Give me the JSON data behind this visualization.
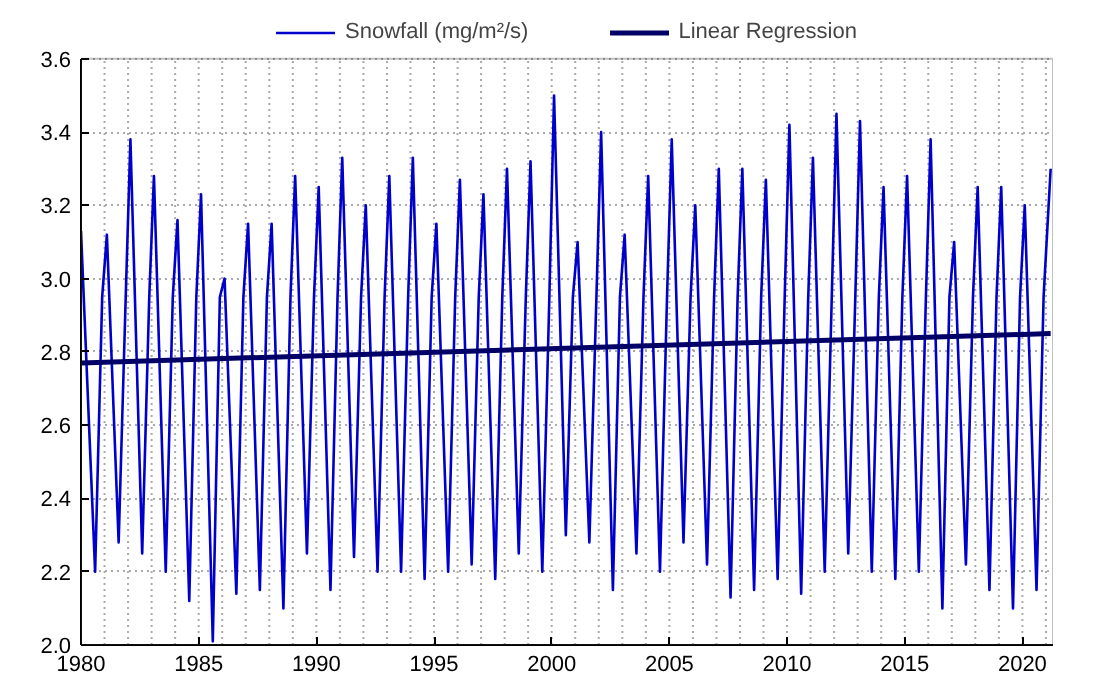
{
  "chart_data": {
    "type": "line",
    "xlim": [
      1980,
      2021.3
    ],
    "ylim": [
      2.0,
      3.6
    ],
    "xticks": [
      1980,
      1985,
      1990,
      1995,
      2000,
      2005,
      2010,
      2015,
      2020
    ],
    "yticks": [
      {
        "value": 2.0,
        "label": "2.0"
      },
      2.2,
      2.4,
      2.6,
      2.8,
      {
        "value": 3.0,
        "label": "3.0"
      },
      3.2,
      3.4,
      3.6
    ],
    "grid": true,
    "legend": "top",
    "marker": "none",
    "line_style": "solid",
    "series": [
      {
        "name": "Snowfall (mg/m²/s)",
        "color": "#0000cc",
        "x": [
          1980.0,
          1980.6,
          1980.9,
          1981.1,
          1981.6,
          1981.9,
          1982.1,
          1982.6,
          1982.9,
          1983.1,
          1983.6,
          1983.9,
          1984.1,
          1984.6,
          1984.9,
          1985.1,
          1985.6,
          1985.9,
          1986.1,
          1986.6,
          1986.9,
          1987.1,
          1987.6,
          1987.9,
          1988.1,
          1988.6,
          1988.9,
          1989.1,
          1989.6,
          1989.9,
          1990.1,
          1990.6,
          1990.9,
          1991.1,
          1991.6,
          1991.9,
          1992.1,
          1992.6,
          1992.9,
          1993.1,
          1993.6,
          1993.9,
          1994.1,
          1994.6,
          1994.9,
          1995.1,
          1995.6,
          1995.9,
          1996.1,
          1996.6,
          1996.9,
          1997.1,
          1997.6,
          1997.9,
          1998.1,
          1998.6,
          1998.9,
          1999.1,
          1999.6,
          1999.9,
          2000.1,
          2000.6,
          2000.9,
          2001.1,
          2001.6,
          2001.9,
          2002.1,
          2002.6,
          2002.9,
          2003.1,
          2003.6,
          2003.9,
          2004.1,
          2004.6,
          2004.9,
          2005.1,
          2005.6,
          2005.9,
          2006.1,
          2006.6,
          2006.9,
          2007.1,
          2007.6,
          2007.9,
          2008.1,
          2008.6,
          2008.9,
          2009.1,
          2009.6,
          2009.9,
          2010.1,
          2010.6,
          2010.9,
          2011.1,
          2011.6,
          2011.9,
          2012.1,
          2012.6,
          2012.9,
          2013.1,
          2013.6,
          2013.9,
          2014.1,
          2014.6,
          2014.9,
          2015.1,
          2015.6,
          2015.9,
          2016.1,
          2016.6,
          2016.9,
          2017.1,
          2017.6,
          2017.9,
          2018.1,
          2018.6,
          2018.9,
          2019.1,
          2019.6,
          2019.9,
          2020.1,
          2020.6,
          2020.9,
          2021.2
        ],
        "values": [
          3.13,
          2.2,
          2.95,
          3.12,
          2.28,
          2.95,
          3.38,
          2.25,
          2.95,
          3.28,
          2.2,
          2.95,
          3.16,
          2.12,
          2.95,
          3.23,
          2.01,
          2.95,
          3.0,
          2.14,
          2.95,
          3.15,
          2.15,
          2.95,
          3.15,
          2.1,
          2.95,
          3.28,
          2.25,
          2.95,
          3.25,
          2.15,
          2.95,
          3.33,
          2.24,
          2.95,
          3.2,
          2.2,
          2.95,
          3.28,
          2.2,
          2.95,
          3.33,
          2.18,
          2.95,
          3.15,
          2.2,
          2.95,
          3.27,
          2.22,
          2.95,
          3.23,
          2.18,
          2.95,
          3.3,
          2.25,
          2.95,
          3.32,
          2.2,
          2.95,
          3.5,
          2.3,
          2.95,
          3.1,
          2.28,
          2.95,
          3.4,
          2.15,
          2.95,
          3.12,
          2.25,
          2.95,
          3.28,
          2.2,
          2.95,
          3.38,
          2.28,
          2.95,
          3.2,
          2.22,
          2.95,
          3.3,
          2.13,
          2.95,
          3.3,
          2.15,
          2.95,
          3.27,
          2.18,
          2.95,
          3.42,
          2.14,
          2.95,
          3.33,
          2.2,
          2.95,
          3.45,
          2.25,
          2.95,
          3.43,
          2.2,
          2.95,
          3.25,
          2.18,
          2.95,
          3.28,
          2.2,
          2.95,
          3.38,
          2.1,
          2.95,
          3.1,
          2.22,
          2.95,
          3.25,
          2.15,
          2.95,
          3.25,
          2.1,
          2.95,
          3.2,
          2.15,
          2.95,
          3.3
        ]
      },
      {
        "name": "Linear Regression",
        "color": "#000066",
        "x": [
          1980.0,
          2021.2
        ],
        "values": [
          2.77,
          2.85
        ]
      }
    ]
  }
}
